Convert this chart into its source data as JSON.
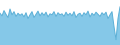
{
  "values": [
    60,
    55,
    65,
    58,
    52,
    68,
    57,
    63,
    54,
    60,
    56,
    59,
    53,
    61,
    50,
    57,
    63,
    52,
    58,
    64,
    55,
    61,
    56,
    62,
    53,
    59,
    57,
    63,
    54,
    61,
    57,
    59,
    54,
    62,
    56,
    60,
    55,
    63,
    52,
    58,
    60,
    54,
    61,
    57,
    64,
    53,
    60,
    56,
    62,
    58,
    54,
    61,
    57,
    62,
    50,
    57,
    63,
    35,
    10,
    50,
    72
  ],
  "line_color": "#5bafd6",
  "fill_color": "#85c8e8",
  "background_color": "#ffffff",
  "linewidth": 0.7,
  "ylim_min": 0,
  "ylim_max": 85
}
